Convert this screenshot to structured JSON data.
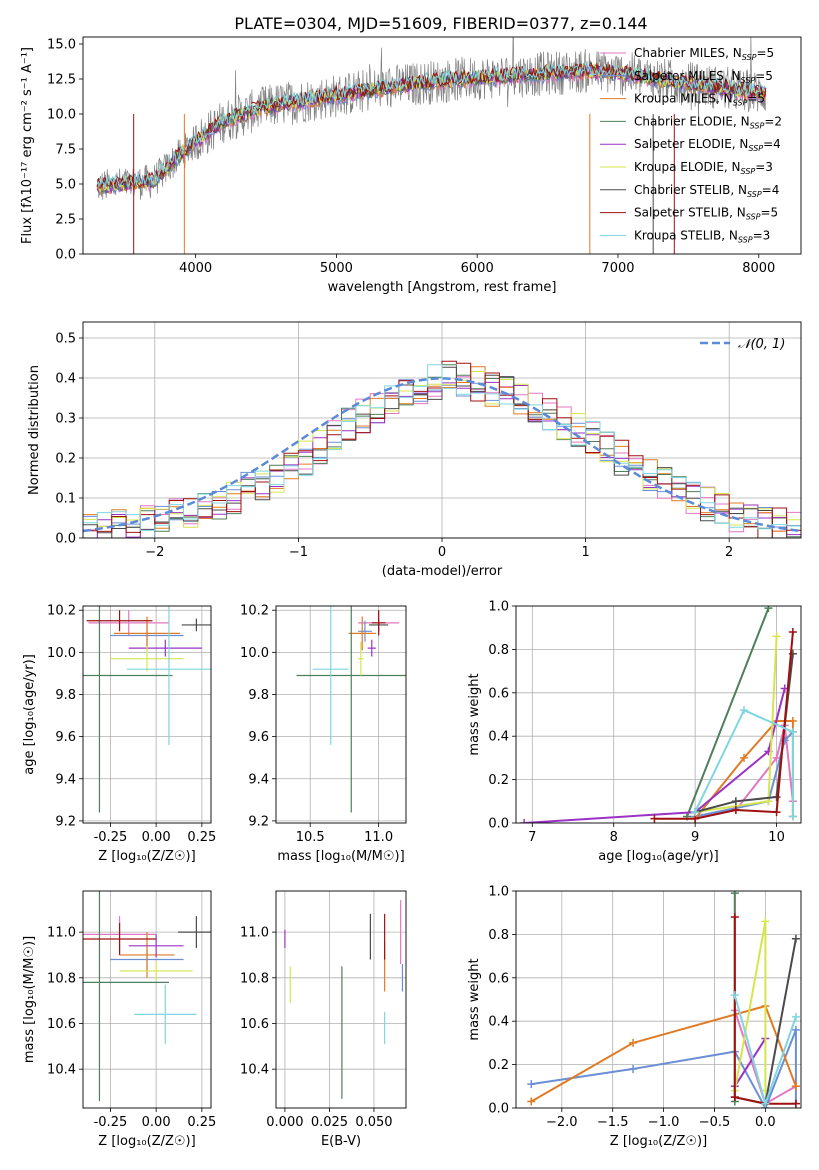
{
  "figure_title": "PLATE=0304, MJD=51609, FIBERID=0377, z=0.144",
  "colors": {
    "Chabrier MILES": "#e377c2",
    "Salpeter MILES": "#6a8fd6",
    "Kroupa MILES": "#e07b24",
    "Chabrier ELODIE": "#4f7f5a",
    "Salpeter ELODIE": "#9a32c6",
    "Kroupa ELODIE": "#d6e54d",
    "Chabrier STELIB": "#4a4a4a",
    "Salpeter STELIB": "#a01010",
    "Kroupa STELIB": "#7fd6e0",
    "data": "#808080",
    "normal": "#5b8ad8"
  },
  "chart_data": [
    {
      "id": "spectrum",
      "type": "line",
      "xlabel": "wavelength [Angstrom, rest frame]",
      "ylabel": "Flux [fλ10⁻¹⁷ erg cm⁻² s⁻¹ A⁻¹]",
      "xlim": [
        3200,
        8300
      ],
      "ylim": [
        0,
        15.5
      ],
      "xticks": [
        4000,
        5000,
        6000,
        7000,
        8000
      ],
      "yticks": [
        0.0,
        2.5,
        5.0,
        7.5,
        10.0,
        12.5,
        15.0
      ],
      "legend_position": "top-right",
      "legend": [
        {
          "series": "Chabrier MILES",
          "label": "Chabrier MILES, N",
          "sub": "SSP",
          "tail": "=5"
        },
        {
          "series": "Salpeter MILES",
          "label": "Salpeter MILES, N",
          "sub": "SSP",
          "tail": "=5"
        },
        {
          "series": "Kroupa MILES",
          "label": "Kroupa MILES, N",
          "sub": "SSP",
          "tail": "=5"
        },
        {
          "series": "Chabrier ELODIE",
          "label": "Chabrier ELODIE, N",
          "sub": "SSP",
          "tail": "=2"
        },
        {
          "series": "Salpeter ELODIE",
          "label": "Salpeter ELODIE, N",
          "sub": "SSP",
          "tail": "=4"
        },
        {
          "series": "Kroupa ELODIE",
          "label": "Kroupa ELODIE, N",
          "sub": "SSP",
          "tail": "=3"
        },
        {
          "series": "Chabrier STELIB",
          "label": "Chabrier STELIB, N",
          "sub": "SSP",
          "tail": "=4"
        },
        {
          "series": "Salpeter STELIB",
          "label": "Salpeter STELIB, N",
          "sub": "SSP",
          "tail": "=5"
        },
        {
          "series": "Kroupa STELIB",
          "label": "Kroupa STELIB, N",
          "sub": "SSP",
          "tail": "=3"
        }
      ],
      "continuum_x": [
        3300,
        3500,
        3700,
        3900,
        4000,
        4200,
        4500,
        4800,
        5000,
        5300,
        5600,
        5900,
        6200,
        6500,
        6800,
        7100,
        7400,
        7700,
        8000
      ],
      "continuum_y": [
        4.8,
        5.0,
        5.2,
        7.2,
        8.0,
        9.5,
        10.5,
        11.0,
        11.3,
        11.8,
        12.2,
        12.5,
        12.7,
        12.9,
        13.1,
        12.8,
        12.3,
        11.9,
        11.5
      ]
    },
    {
      "id": "residuals",
      "type": "histogram",
      "xlabel": "(data-model)/error",
      "ylabel": "Normed distribution",
      "xlim": [
        -2.5,
        2.5
      ],
      "ylim": [
        0,
        0.54
      ],
      "xticks": [
        -2,
        -1,
        0,
        1,
        2
      ],
      "yticks": [
        0.0,
        0.1,
        0.2,
        0.3,
        0.4,
        0.5
      ],
      "grid": true,
      "legend_position": "top-right",
      "gaussian_label": "𝒩(0, 1)",
      "bin_edges_start": -2.5,
      "bin_width": 0.1,
      "base_profile": [
        0.018,
        0.022,
        0.028,
        0.034,
        0.042,
        0.05,
        0.058,
        0.067,
        0.078,
        0.091,
        0.104,
        0.12,
        0.135,
        0.155,
        0.175,
        0.2,
        0.225,
        0.255,
        0.28,
        0.305,
        0.33,
        0.35,
        0.365,
        0.38,
        0.39,
        0.4,
        0.395,
        0.385,
        0.37,
        0.36,
        0.345,
        0.33,
        0.31,
        0.29,
        0.27,
        0.25,
        0.225,
        0.2,
        0.18,
        0.16,
        0.14,
        0.12,
        0.1,
        0.085,
        0.07,
        0.058,
        0.048,
        0.04,
        0.032,
        0.025
      ]
    },
    {
      "id": "age-vs-Z",
      "type": "errorbar",
      "xlabel": "Z [log₁₀(Z/Z☉)]",
      "ylabel": "age  [log₁₀(age/yr)]",
      "xlim": [
        -0.4,
        0.3
      ],
      "ylim": [
        9.19,
        10.22
      ],
      "xticks": [
        "-0.25",
        "0.00",
        "0.25"
      ],
      "xtick_values": [
        -0.25,
        0.0,
        0.25
      ],
      "yticks": [
        9.2,
        9.4,
        9.6,
        9.8,
        10.0,
        10.2
      ],
      "points": [
        {
          "series": "Chabrier MILES",
          "x": -0.15,
          "xerr": 0.22,
          "y": 10.14,
          "yerr": 0.06
        },
        {
          "series": "Salpeter MILES",
          "x": -0.05,
          "xerr": 0.2,
          "y": 10.08,
          "yerr": 0.06
        },
        {
          "series": "Kroupa MILES",
          "x": -0.05,
          "xerr": 0.18,
          "y": 10.09,
          "yerr": 0.08
        },
        {
          "series": "Chabrier ELODIE",
          "x": -0.31,
          "xerr": 0.4,
          "y": 9.89,
          "yerr": 0.65
        },
        {
          "series": "Salpeter ELODIE",
          "x": 0.05,
          "xerr": 0.2,
          "y": 10.02,
          "yerr": 0.04
        },
        {
          "series": "Kroupa ELODIE",
          "x": -0.05,
          "xerr": 0.2,
          "y": 9.97,
          "yerr": 0.06
        },
        {
          "series": "Chabrier STELIB",
          "x": 0.22,
          "xerr": 0.08,
          "y": 10.13,
          "yerr": 0.03
        },
        {
          "series": "Salpeter STELIB",
          "x": -0.2,
          "xerr": 0.18,
          "y": 10.15,
          "yerr": 0.05
        },
        {
          "series": "Kroupa STELIB",
          "x": 0.07,
          "xerr": 0.23,
          "y": 9.92,
          "yerr": 0.36
        }
      ]
    },
    {
      "id": "age-vs-mass",
      "type": "errorbar",
      "xlabel": "mass [log₁₀(M/M☉)]",
      "ylabel": "",
      "xlim": [
        10.25,
        11.2
      ],
      "ylim": [
        9.19,
        10.22
      ],
      "xticks": [
        "10.5",
        "11.0"
      ],
      "xtick_values": [
        10.5,
        11.0
      ],
      "yticks": [
        9.2,
        9.4,
        9.6,
        9.8,
        10.0,
        10.2
      ],
      "points": [
        {
          "series": "Chabrier MILES",
          "x": 11.0,
          "xerr": 0.15,
          "y": 10.14,
          "yerr": 0.06
        },
        {
          "series": "Salpeter MILES",
          "x": 10.9,
          "xerr": 0.05,
          "y": 10.1,
          "yerr": 0.05
        },
        {
          "series": "Kroupa MILES",
          "x": 10.88,
          "xerr": 0.1,
          "y": 10.09,
          "yerr": 0.08
        },
        {
          "series": "Chabrier ELODIE",
          "x": 10.8,
          "xerr": 0.4,
          "y": 9.89,
          "yerr": 0.65
        },
        {
          "series": "Salpeter ELODIE",
          "x": 10.95,
          "xerr": 0.03,
          "y": 10.02,
          "yerr": 0.04
        },
        {
          "series": "Kroupa ELODIE",
          "x": 10.87,
          "xerr": 0.02,
          "y": 9.97,
          "yerr": 0.08
        },
        {
          "series": "Chabrier STELIB",
          "x": 11.0,
          "xerr": 0.07,
          "y": 10.13,
          "yerr": 0.03
        },
        {
          "series": "Salpeter STELIB",
          "x": 11.0,
          "xerr": 0.05,
          "y": 10.14,
          "yerr": 0.06
        },
        {
          "series": "Kroupa STELIB",
          "x": 10.65,
          "xerr": 0.13,
          "y": 9.92,
          "yerr": 0.36
        }
      ]
    },
    {
      "id": "mass-weight-vs-age",
      "type": "line",
      "xlabel": "age  [log₁₀(age/yr)]",
      "ylabel": "mass weight",
      "xlim": [
        6.8,
        10.3
      ],
      "ylim": [
        0,
        1.0
      ],
      "xticks": [
        7,
        8,
        9,
        10
      ],
      "yticks": [
        0.0,
        0.2,
        0.4,
        0.6,
        0.8,
        1.0
      ],
      "grid": true,
      "series": [
        {
          "name": "Chabrier MILES",
          "x": [
            9.0,
            9.5,
            10.0,
            10.1,
            10.2
          ],
          "y": [
            0.02,
            0.06,
            0.3,
            0.45,
            0.1
          ]
        },
        {
          "name": "Salpeter MILES",
          "x": [
            9.0,
            9.9,
            10.1,
            10.2
          ],
          "y": [
            0.03,
            0.1,
            0.38,
            0.42
          ]
        },
        {
          "name": "Kroupa MILES",
          "x": [
            9.0,
            9.6,
            10.0,
            10.2,
            10.2
          ],
          "y": [
            0.02,
            0.3,
            0.47,
            0.47,
            0.03
          ]
        },
        {
          "name": "Chabrier ELODIE",
          "x": [
            8.9,
            9.9
          ],
          "y": [
            0.03,
            0.99
          ]
        },
        {
          "name": "Salpeter ELODIE",
          "x": [
            6.9,
            9.0,
            9.9,
            10.1
          ],
          "y": [
            0.0,
            0.05,
            0.33,
            0.62
          ]
        },
        {
          "name": "Kroupa ELODIE",
          "x": [
            9.0,
            9.9,
            10.0
          ],
          "y": [
            0.05,
            0.1,
            0.86
          ]
        },
        {
          "name": "Chabrier STELIB",
          "x": [
            9.0,
            9.5,
            10.0,
            10.2
          ],
          "y": [
            0.05,
            0.1,
            0.12,
            0.78
          ]
        },
        {
          "name": "Salpeter STELIB",
          "x": [
            8.5,
            9.0,
            9.5,
            10.0,
            10.2
          ],
          "y": [
            0.02,
            0.02,
            0.06,
            0.05,
            0.88
          ]
        },
        {
          "name": "Kroupa STELIB",
          "x": [
            9.0,
            9.6,
            10.2,
            10.2
          ],
          "y": [
            0.05,
            0.52,
            0.42,
            0.03
          ]
        }
      ]
    },
    {
      "id": "mass-vs-Z",
      "type": "errorbar",
      "xlabel": "Z [log₁₀(Z/Z☉)]",
      "ylabel": "mass [log₁₀(M/M☉)]",
      "xlim": [
        -0.4,
        0.3
      ],
      "ylim": [
        10.23,
        11.18
      ],
      "xticks": [
        "-0.25",
        "0.00",
        "0.25"
      ],
      "xtick_values": [
        -0.25,
        0.0,
        0.25
      ],
      "yticks": [
        10.4,
        10.6,
        10.8,
        11.0
      ],
      "points": [
        {
          "series": "Chabrier MILES",
          "x": -0.2,
          "xerr": 0.2,
          "y": 10.99,
          "yerr": 0.08
        },
        {
          "series": "Salpeter MILES",
          "x": -0.05,
          "xerr": 0.2,
          "y": 10.88,
          "yerr": 0.05
        },
        {
          "series": "Kroupa MILES",
          "x": -0.05,
          "xerr": 0.15,
          "y": 10.9,
          "yerr": 0.1
        },
        {
          "series": "Chabrier ELODIE",
          "x": -0.31,
          "xerr": 0.38,
          "y": 10.78,
          "yerr": 0.52
        },
        {
          "series": "Salpeter ELODIE",
          "x": 0.0,
          "xerr": 0.15,
          "y": 10.94,
          "yerr": 0.05
        },
        {
          "series": "Kroupa ELODIE",
          "x": 0.0,
          "xerr": 0.2,
          "y": 10.83,
          "yerr": 0.04
        },
        {
          "series": "Chabrier STELIB",
          "x": 0.22,
          "xerr": 0.1,
          "y": 11.0,
          "yerr": 0.07
        },
        {
          "series": "Salpeter STELIB",
          "x": -0.2,
          "xerr": 0.2,
          "y": 10.97,
          "yerr": 0.07
        },
        {
          "series": "Kroupa STELIB",
          "x": 0.05,
          "xerr": 0.17,
          "y": 10.64,
          "yerr": 0.13
        }
      ]
    },
    {
      "id": "mass-vs-EBV",
      "type": "errorbar",
      "xlabel": "E(B-V)",
      "ylabel": "",
      "xlim": [
        -0.005,
        0.068
      ],
      "ylim": [
        10.23,
        11.18
      ],
      "xticks": [
        "0.000",
        "0.025",
        "0.050"
      ],
      "xtick_values": [
        0.0,
        0.025,
        0.05
      ],
      "yticks": [
        10.4,
        10.6,
        10.8,
        11.0
      ],
      "points": [
        {
          "series": "Chabrier MILES",
          "x": 0.065,
          "xerr": 0,
          "y": 11.0,
          "yerr": 0.14
        },
        {
          "series": "Salpeter MILES",
          "x": 0.066,
          "xerr": 0,
          "y": 10.8,
          "yerr": 0.06
        },
        {
          "series": "Kroupa MILES",
          "x": 0.056,
          "xerr": 0,
          "y": 10.85,
          "yerr": 0.11
        },
        {
          "series": "Chabrier ELODIE",
          "x": 0.032,
          "xerr": 0,
          "y": 10.56,
          "yerr": 0.29
        },
        {
          "series": "Salpeter ELODIE",
          "x": 0.0,
          "xerr": 0,
          "y": 10.97,
          "yerr": 0.04
        },
        {
          "series": "Kroupa ELODIE",
          "x": 0.003,
          "xerr": 0,
          "y": 10.77,
          "yerr": 0.08
        },
        {
          "series": "Chabrier STELIB",
          "x": 0.048,
          "xerr": 0,
          "y": 10.98,
          "yerr": 0.1
        },
        {
          "series": "Salpeter STELIB",
          "x": 0.056,
          "xerr": 0,
          "y": 10.98,
          "yerr": 0.1
        },
        {
          "series": "Kroupa STELIB",
          "x": 0.056,
          "xerr": 0,
          "y": 10.58,
          "yerr": 0.07
        }
      ]
    },
    {
      "id": "mass-weight-vs-Z",
      "type": "line",
      "xlabel": "Z [log₁₀(Z/Z☉)]",
      "ylabel": "mass weight",
      "xlim": [
        -2.45,
        0.35
      ],
      "ylim": [
        0,
        1.0
      ],
      "xticks": [
        -2.0,
        -1.5,
        -1.0,
        -0.5,
        0.0
      ],
      "xtick_labels": [
        "−2.0",
        "−1.5",
        "−1.0",
        "−0.5",
        "0.0"
      ],
      "yticks": [
        0.0,
        0.2,
        0.4,
        0.6,
        0.8,
        1.0
      ],
      "grid": true,
      "series": [
        {
          "name": "Chabrier MILES",
          "x": [
            -0.3,
            0.0,
            0.3
          ],
          "y": [
            0.45,
            0.02,
            0.1
          ]
        },
        {
          "name": "Salpeter MILES",
          "x": [
            -2.3,
            -1.3,
            -0.3,
            0.0,
            0.3,
            0.3
          ],
          "y": [
            0.11,
            0.18,
            0.26,
            0.0,
            0.36,
            0.02
          ]
        },
        {
          "name": "Kroupa MILES",
          "x": [
            -2.3,
            -1.3,
            0.0,
            0.3
          ],
          "y": [
            0.03,
            0.3,
            0.47,
            0.1
          ]
        },
        {
          "name": "Chabrier ELODIE",
          "x": [
            -0.3,
            -0.3
          ],
          "y": [
            0.99,
            0.03
          ]
        },
        {
          "name": "Salpeter ELODIE",
          "x": [
            -0.3,
            0.0
          ],
          "y": [
            0.1,
            0.32
          ]
        },
        {
          "name": "Kroupa ELODIE",
          "x": [
            -0.3,
            0.0,
            0.0
          ],
          "y": [
            0.08,
            0.86,
            0.08
          ]
        },
        {
          "name": "Chabrier STELIB",
          "x": [
            -0.3,
            0.0,
            0.3
          ],
          "y": [
            0.05,
            0.02,
            0.78
          ]
        },
        {
          "name": "Salpeter STELIB",
          "x": [
            -0.3,
            -0.3,
            0.0,
            0.3
          ],
          "y": [
            0.88,
            0.05,
            0.02,
            0.02
          ]
        },
        {
          "name": "Kroupa STELIB",
          "x": [
            -0.3,
            0.0,
            0.3
          ],
          "y": [
            0.52,
            0.02,
            0.42
          ]
        }
      ]
    }
  ]
}
